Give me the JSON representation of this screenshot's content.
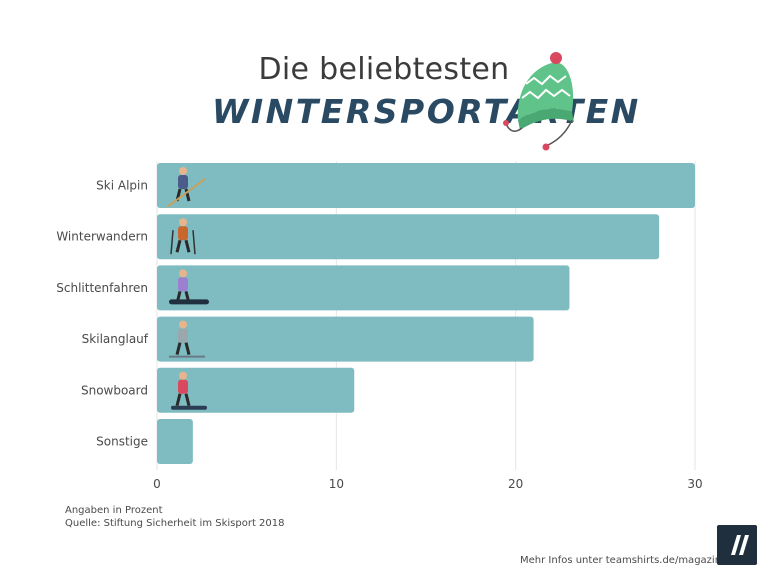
{
  "title": {
    "line1": "Die beliebtesten",
    "line2": "WINTERSPORTARTEN"
  },
  "colors": {
    "bar": "#7fbcc2",
    "title_dark": "#2a4a63",
    "grid": "#e6e6e6",
    "hat_green": "#5fc38a",
    "hat_pom": "#d9485f",
    "logo_bg": "#1f2f3d"
  },
  "chart_data": {
    "type": "bar",
    "orientation": "horizontal",
    "categories": [
      "Ski Alpin",
      "Winterwandern",
      "Schlittenfahren",
      "Skilanglauf",
      "Snowboard",
      "Sonstige"
    ],
    "values": [
      30,
      28,
      23,
      21,
      11,
      2
    ],
    "xlim": [
      0,
      30
    ],
    "xticks": [
      "0",
      "10",
      "20",
      "30"
    ],
    "grid": true,
    "icons": [
      "skier-alpine-icon",
      "hiker-icon",
      "sledder-icon",
      "cross-country-skier-icon",
      "snowboarder-icon",
      ""
    ]
  },
  "notes": {
    "line1": "Angaben in Prozent",
    "line2": "Quelle: Stiftung Sicherheit im Skisport 2018"
  },
  "footer": {
    "more_info": "Mehr Infos unter teamshirts.de/magazin."
  }
}
